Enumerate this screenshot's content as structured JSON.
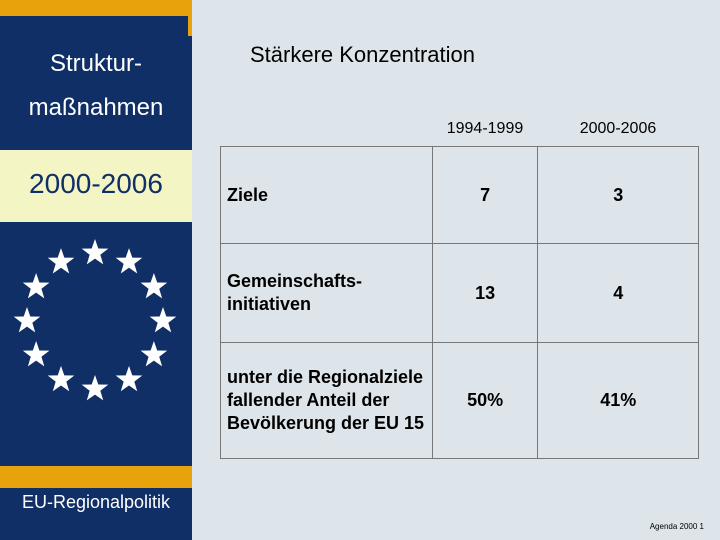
{
  "sidebar": {
    "title_line1": "Struktur-",
    "title_line2": "maßnahmen",
    "period": "2000-2006",
    "footer": "EU-Regionalpolitik",
    "emblem_icon": "eu-stars-icon"
  },
  "slide": {
    "title": "Stärkere Konzentration",
    "note": "Agenda 2000 1"
  },
  "table": {
    "columns": [
      "1994-1999",
      "2000-2006"
    ],
    "rows": [
      {
        "label": "Ziele",
        "v1": "7",
        "v2": "3"
      },
      {
        "label": "Gemeinschafts-initiativen",
        "v1": "13",
        "v2": "4"
      },
      {
        "label": "unter die Regionalziele fallender Anteil der Bevölkerung der EU 15",
        "v1": "50%",
        "v2": "41%"
      }
    ]
  },
  "colors": {
    "navy": "#0f2f66",
    "orange": "#e7a20c",
    "cream": "#f3f5c4",
    "background": "#dde5ea"
  }
}
